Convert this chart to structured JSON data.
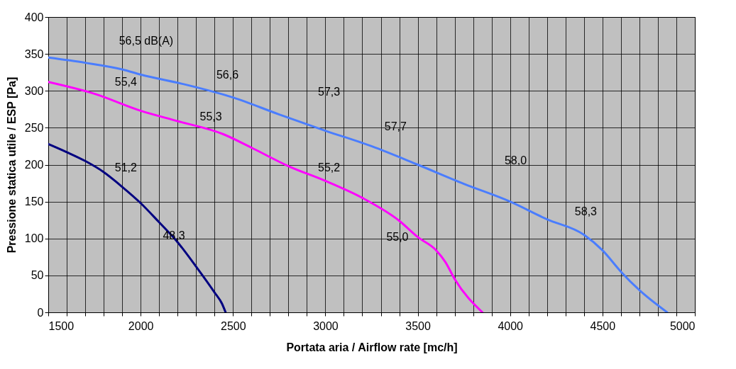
{
  "chart_data": {
    "type": "line",
    "xlabel": "Portata aria / Airflow rate [mc/h]",
    "ylabel": "Pressione statica utile / ESP [Pa]",
    "xlim": [
      1500,
      5000
    ],
    "ylim": [
      0,
      400
    ],
    "xticks": [
      1500,
      {
        "value": 1600,
        "label": null
      },
      {
        "value": 1700,
        "label": null
      },
      {
        "value": 1800,
        "label": null
      },
      {
        "value": 1900,
        "label": null
      },
      2000,
      {
        "value": 2100,
        "label": null
      },
      {
        "value": 2200,
        "label": null
      },
      {
        "value": 2300,
        "label": null
      },
      {
        "value": 2400,
        "label": null
      },
      2500,
      {
        "value": 2600,
        "label": null
      },
      {
        "value": 2700,
        "label": null
      },
      {
        "value": 2800,
        "label": null
      },
      {
        "value": 2900,
        "label": null
      },
      3000,
      {
        "value": 3100,
        "label": null
      },
      {
        "value": 3200,
        "label": null
      },
      {
        "value": 3300,
        "label": null
      },
      {
        "value": 3400,
        "label": null
      },
      3500,
      {
        "value": 3600,
        "label": null
      },
      {
        "value": 3700,
        "label": null
      },
      {
        "value": 3800,
        "label": null
      },
      {
        "value": 3900,
        "label": null
      },
      4000,
      {
        "value": 4100,
        "label": null
      },
      {
        "value": 4200,
        "label": null
      },
      {
        "value": 4300,
        "label": null
      },
      {
        "value": 4400,
        "label": null
      },
      4500,
      {
        "value": 4600,
        "label": null
      },
      {
        "value": 4700,
        "label": null
      },
      {
        "value": 4800,
        "label": null
      },
      {
        "value": 4900,
        "label": null
      },
      5000
    ],
    "yticks": [
      0,
      50,
      100,
      150,
      200,
      250,
      300,
      350,
      400
    ],
    "grid": true,
    "legend": false,
    "marker": "none",
    "line_style": "solid",
    "series": [
      {
        "color": "#4a7dff",
        "x": [
          1500,
          1700,
          1900,
          2000,
          2250,
          2500,
          2750,
          3000,
          3250,
          3500,
          3750,
          4000,
          4200,
          4400,
          4500,
          4600,
          4700,
          4850
        ],
        "values": [
          345,
          338,
          329,
          322,
          308,
          291,
          268,
          246,
          225,
          200,
          174,
          150,
          126,
          105,
          84,
          55,
          30,
          0
        ]
      },
      {
        "color": "#ff00ff",
        "x": [
          1500,
          1750,
          2000,
          2200,
          2450,
          2600,
          2800,
          3000,
          3200,
          3400,
          3500,
          3600,
          3650,
          3700,
          3850
        ],
        "values": [
          312,
          296,
          273,
          259,
          241,
          223,
          198,
          178,
          155,
          124,
          102,
          84,
          68,
          45,
          0
        ]
      },
      {
        "color": "#000080",
        "x": [
          1500,
          1600,
          1700,
          1800,
          1900,
          2000,
          2100,
          2200,
          2300,
          2400,
          2440,
          2460
        ],
        "values": [
          228,
          217,
          205,
          190,
          170,
          148,
          122,
          95,
          62,
          27,
          12,
          0
        ]
      }
    ],
    "annotations": [
      "56,5 dB(A)",
      "56,6",
      "57,3",
      "57,7",
      "58,0",
      "58,3",
      "55,4",
      "55,3",
      "55,2",
      "55,0",
      "51,2",
      "48,3"
    ]
  }
}
